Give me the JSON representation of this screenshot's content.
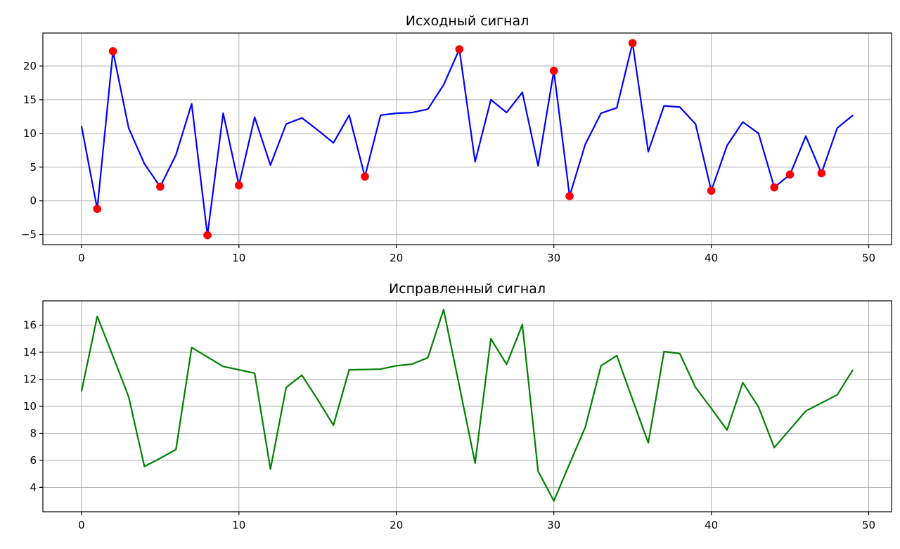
{
  "chart_data": [
    {
      "type": "line",
      "title": "Исходный сигнал",
      "xlabel": "",
      "ylabel": "",
      "grid": true,
      "xlim": [
        -2.45,
        51.45
      ],
      "ylim": [
        -6.5,
        24.9
      ],
      "xticks": [
        0,
        10,
        20,
        30,
        40,
        50
      ],
      "yticks": [
        -5,
        0,
        5,
        10,
        15,
        20
      ],
      "series": [
        {
          "type": "line",
          "color": "#0000ff",
          "x": [
            0,
            1,
            2,
            3,
            4,
            5,
            6,
            7,
            8,
            9,
            10,
            11,
            12,
            13,
            14,
            15,
            16,
            17,
            18,
            19,
            20,
            21,
            22,
            23,
            24,
            25,
            26,
            27,
            28,
            29,
            30,
            31,
            32,
            33,
            34,
            35,
            36,
            37,
            38,
            39,
            40,
            41,
            42,
            43,
            44,
            45,
            46,
            47,
            48,
            49
          ],
          "y": [
            11.1,
            -1.2,
            22.2,
            10.8,
            5.5,
            2.1,
            6.8,
            14.4,
            -5.1,
            13.0,
            2.3,
            12.4,
            5.3,
            11.4,
            12.3,
            10.5,
            8.6,
            12.7,
            3.6,
            12.7,
            13.0,
            13.1,
            13.6,
            17.2,
            22.5,
            5.8,
            15.0,
            13.1,
            16.1,
            5.2,
            19.3,
            0.7,
            8.4,
            13.0,
            13.8,
            23.4,
            7.3,
            14.1,
            13.9,
            11.4,
            1.5,
            8.2,
            11.7,
            10.0,
            2.0,
            3.9,
            9.6,
            4.1,
            10.8,
            12.7
          ]
        },
        {
          "type": "scatter",
          "color": "#ff0000",
          "x": [
            1,
            2,
            5,
            8,
            10,
            18,
            24,
            30,
            31,
            35,
            40,
            44,
            45,
            47
          ],
          "y": [
            -1.2,
            22.2,
            2.1,
            -5.1,
            2.3,
            3.6,
            22.5,
            19.3,
            0.7,
            23.4,
            1.5,
            2.0,
            3.9,
            4.1
          ]
        }
      ]
    },
    {
      "type": "line",
      "title": "Исправленный сигнал",
      "xlabel": "",
      "ylabel": "",
      "grid": true,
      "xlim": [
        -2.45,
        51.45
      ],
      "ylim": [
        2.2,
        17.8
      ],
      "xticks": [
        0,
        10,
        20,
        30,
        40,
        50
      ],
      "yticks": [
        4,
        6,
        8,
        10,
        12,
        14,
        16
      ],
      "series": [
        {
          "type": "line",
          "color": "#008000",
          "x": [
            0,
            1,
            2,
            3,
            4,
            5,
            6,
            7,
            8,
            9,
            10,
            11,
            12,
            13,
            14,
            15,
            16,
            17,
            18,
            19,
            20,
            21,
            22,
            23,
            24,
            25,
            26,
            27,
            28,
            29,
            30,
            31,
            32,
            33,
            34,
            35,
            36,
            37,
            38,
            39,
            40,
            41,
            42,
            43,
            44,
            45,
            46,
            47,
            48,
            49
          ],
          "y": [
            11.1,
            16.65,
            13.7,
            10.7,
            5.55,
            6.15,
            6.8,
            14.35,
            13.65,
            12.95,
            12.7,
            12.45,
            5.35,
            11.4,
            12.3,
            10.5,
            8.6,
            12.7,
            12.72,
            12.75,
            13.0,
            13.12,
            13.6,
            17.15,
            11.5,
            5.8,
            15.0,
            13.1,
            16.05,
            5.2,
            3.0,
            5.75,
            8.45,
            13.0,
            13.75,
            10.5,
            7.3,
            14.05,
            13.9,
            11.4,
            9.85,
            8.25,
            11.75,
            9.95,
            6.95,
            8.3,
            9.65,
            10.25,
            10.85,
            12.7
          ]
        }
      ]
    }
  ]
}
